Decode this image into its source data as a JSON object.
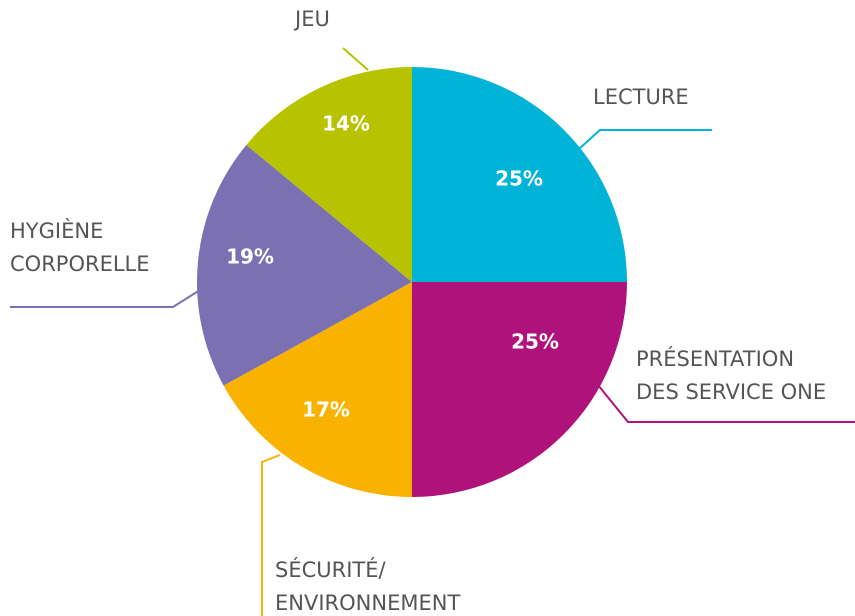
{
  "chart_data": {
    "type": "pie",
    "categories": [
      [
        "LECTURE"
      ],
      [
        "PRÉSENTATION",
        "DES SERVICE ONE"
      ],
      [
        "SÉCURITÉ/",
        "ENVIRONNEMENT"
      ],
      [
        "HYGIÈNE",
        "CORPORELLE"
      ],
      [
        "JEU"
      ]
    ],
    "values": [
      25,
      25,
      17,
      19,
      14
    ],
    "value_labels": [
      "25%",
      "25%",
      "17%",
      "19%",
      "14%"
    ],
    "colors": [
      "#00b3d7",
      "#b0127b",
      "#f9b200",
      "#7a70b2",
      "#b8c300"
    ]
  }
}
